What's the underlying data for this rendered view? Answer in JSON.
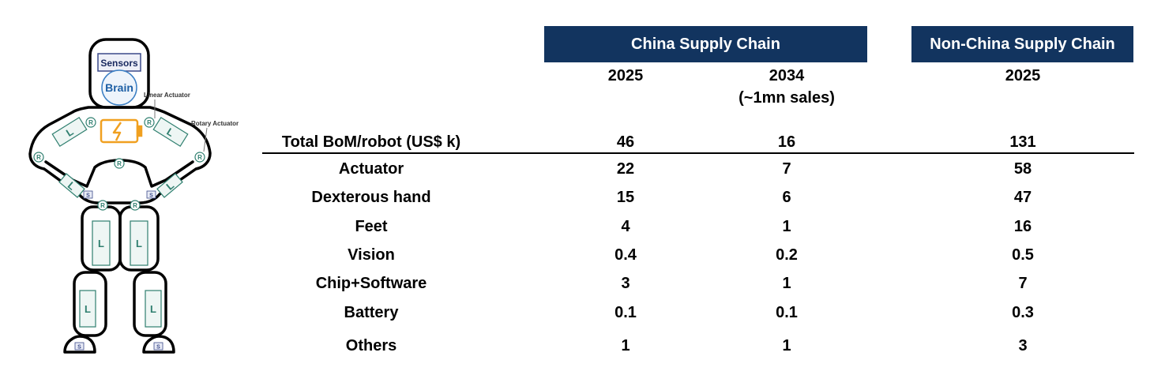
{
  "robot": {
    "sensors_label": "Sensors",
    "brain_label": "Brain",
    "linear_actuator_label": "Linear Actuator",
    "rotary_actuator_label": "Rotary Actuator",
    "linear_marker": "L",
    "rotary_marker": "R",
    "sensor_marker": "S",
    "colors": {
      "outline": "#000000",
      "joint": "#2f7f6f",
      "actuator_fill": "#eef6f4",
      "battery": "#f0a020",
      "head_box": "#3b4a8a"
    }
  },
  "table": {
    "groups": [
      {
        "title": "China Supply Chain",
        "color": "#12345f"
      },
      {
        "title": "Non-China Supply Chain",
        "color": "#12345f"
      }
    ],
    "columns": [
      {
        "year": "2025",
        "note": ""
      },
      {
        "year": "2034",
        "note": "(~1mn sales)"
      },
      {
        "year": "2025",
        "note": ""
      }
    ],
    "total_row": {
      "label": "Total BoM/robot  (US$ k)",
      "values": [
        "46",
        "16",
        "131"
      ]
    },
    "rows": [
      {
        "label": "Actuator",
        "values": [
          "22",
          "7",
          "58"
        ]
      },
      {
        "label": "Dexterous hand",
        "values": [
          "15",
          "6",
          "47"
        ]
      },
      {
        "label": "Feet",
        "values": [
          "4",
          "1",
          "16"
        ]
      },
      {
        "label": "Vision",
        "values": [
          "0.4",
          "0.2",
          "0.5"
        ]
      },
      {
        "label": "Chip+Software",
        "values": [
          "3",
          "1",
          "7"
        ]
      },
      {
        "label": "Battery",
        "values": [
          "0.1",
          "0.1",
          "0.3"
        ]
      },
      {
        "label": "Others",
        "values": [
          "1",
          "1",
          "3"
        ]
      }
    ]
  }
}
